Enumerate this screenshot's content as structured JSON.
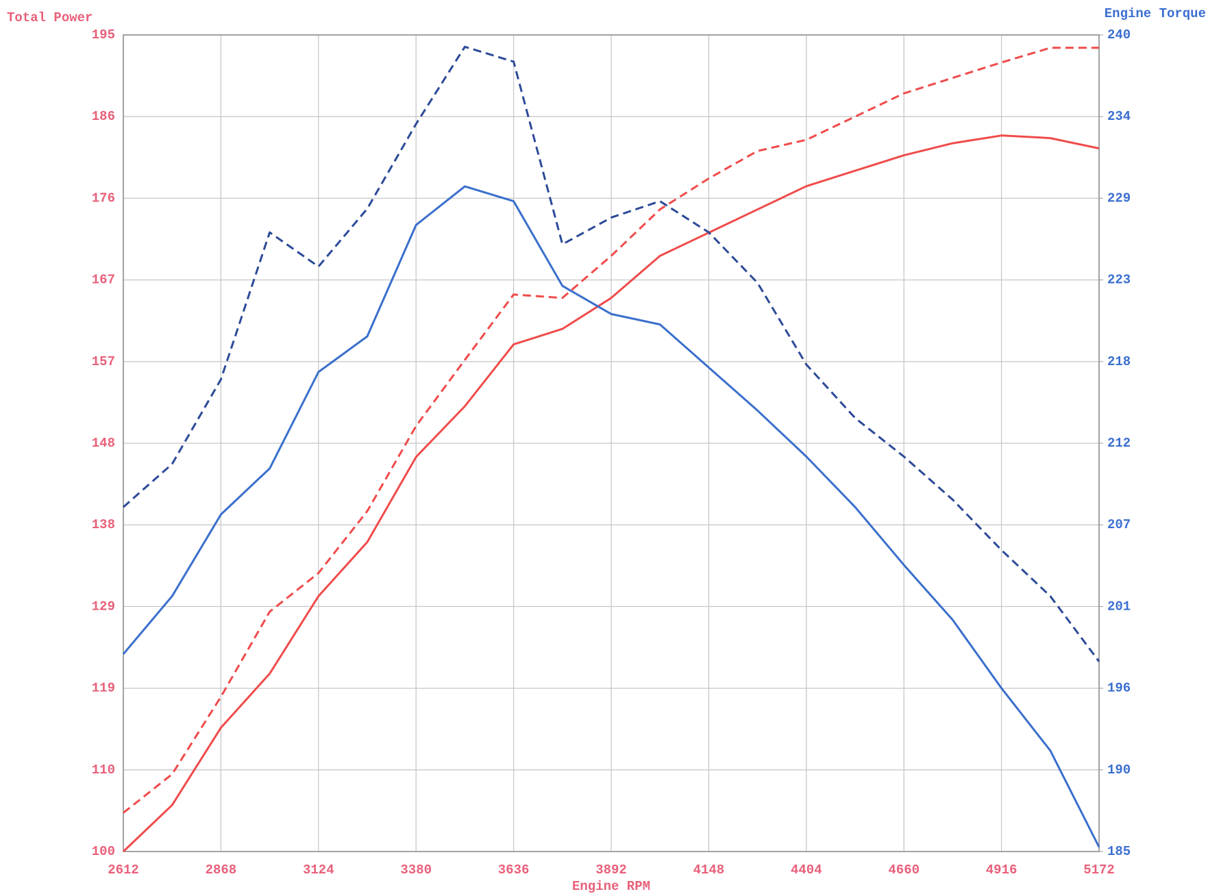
{
  "chart_data": {
    "type": "line",
    "title": "Total Power",
    "y2_title": "Engine Torque",
    "x_label": "Engine RPM",
    "x": [
      2612,
      2740,
      2868,
      2996,
      3124,
      3252,
      3380,
      3508,
      3636,
      3764,
      3892,
      4020,
      4148,
      4276,
      4404,
      4532,
      4660,
      4788,
      4916,
      5044,
      5172
    ],
    "xlim": [
      2612,
      5172
    ],
    "xticks": [
      2612,
      2868,
      3124,
      3380,
      3636,
      3892,
      4148,
      4404,
      4660,
      4916,
      5172
    ],
    "ylim": [
      100,
      195
    ],
    "yticks": [
      100,
      {
        "value": 109.5,
        "label": "110"
      },
      119,
      {
        "value": 128.5,
        "label": "129"
      },
      138,
      {
        "value": 147.5,
        "label": "148"
      },
      157,
      {
        "value": 166.5,
        "label": "167"
      },
      176,
      {
        "value": 185.5,
        "label": "186"
      },
      195
    ],
    "y2lim": [
      185,
      240
    ],
    "y2ticks": [
      185,
      {
        "value": 190.5,
        "label": "190"
      },
      196,
      {
        "value": 201.5,
        "label": "201"
      },
      207,
      {
        "value": 212.5,
        "label": "212"
      },
      218,
      {
        "value": 223.5,
        "label": "223"
      },
      229,
      {
        "value": 234.5,
        "label": "234"
      },
      240
    ],
    "grid": true,
    "series": [
      {
        "color": "#f04b4b",
        "dashed": false,
        "values": [
          100,
          105.4,
          114.4,
          120.7,
          129.7,
          136,
          145.9,
          151.8,
          159,
          160.8,
          164.4,
          169.3,
          172,
          174.7,
          177.4,
          179.2,
          181,
          182.4,
          183.3,
          183,
          181.8
        ]
      },
      {
        "color": "#f04b4b",
        "dashed": true,
        "values": [
          104.5,
          109,
          118,
          127.9,
          132.4,
          139.6,
          149.5,
          157.2,
          164.8,
          164.4,
          169.3,
          174.7,
          178.3,
          181.5,
          182.8,
          185.5,
          188.2,
          190,
          191.8,
          193.5,
          193.5
        ]
      },
      {
        "color": "#3a6fcc",
        "dashed": false,
        "axis": "y2",
        "values": [
          198.3,
          202.2,
          207.7,
          210.8,
          217.3,
          219.7,
          227.2,
          229.8,
          228.8,
          223.1,
          221.2,
          220.5,
          217.6,
          214.7,
          211.6,
          208.2,
          204.3,
          200.6,
          196,
          191.8,
          185.3
        ]
      },
      {
        "color": "#2c4a98",
        "dashed": true,
        "axis": "y2",
        "values": [
          208.2,
          211.1,
          216.8,
          226.7,
          224.4,
          228.3,
          234,
          239.2,
          238.2,
          225.9,
          227.7,
          228.8,
          226.7,
          223.3,
          217.8,
          214.2,
          211.6,
          208.7,
          205.3,
          202.2,
          197.8
        ]
      }
    ]
  }
}
